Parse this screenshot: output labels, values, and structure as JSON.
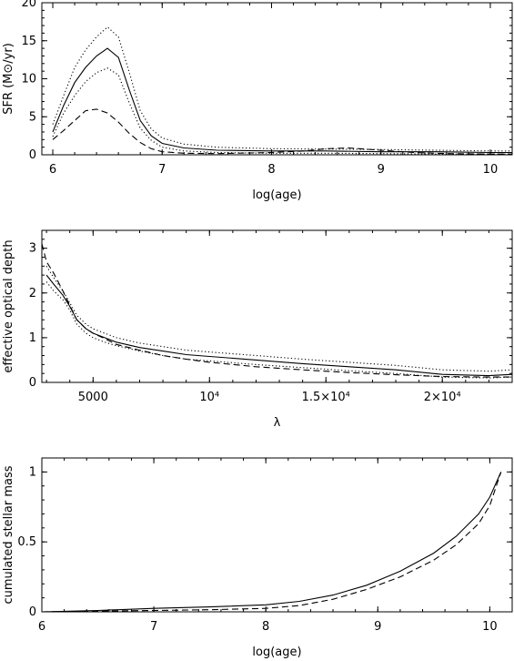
{
  "chart_data": [
    {
      "type": "line",
      "xlabel": "log(age)",
      "ylabel": "SFR (M⊙/yr)",
      "xlim": [
        5.9,
        10.2
      ],
      "ylim": [
        0,
        20
      ],
      "xticks": [
        6,
        7,
        8,
        9,
        10
      ],
      "xtick_labels": [
        "6",
        "7",
        "8",
        "9",
        "10"
      ],
      "yticks": [
        0,
        5,
        10,
        15,
        20
      ],
      "ytick_labels": [
        "0",
        "5",
        "10",
        "15",
        "20"
      ],
      "series": [
        {
          "style": "solid",
          "x": [
            6.0,
            6.1,
            6.2,
            6.3,
            6.4,
            6.5,
            6.6,
            6.7,
            6.8,
            6.9,
            7.0,
            7.2,
            7.5,
            8.0,
            8.5,
            9.0,
            9.5,
            10.0,
            10.2
          ],
          "y": [
            3.0,
            6.5,
            9.5,
            11.5,
            13.0,
            14.0,
            12.8,
            8.5,
            4.5,
            2.5,
            1.5,
            0.9,
            0.6,
            0.5,
            0.5,
            0.4,
            0.4,
            0.3,
            0.3
          ]
        },
        {
          "style": "dotted-upper",
          "x": [
            6.0,
            6.1,
            6.2,
            6.3,
            6.4,
            6.5,
            6.6,
            6.7,
            6.8,
            6.9,
            7.0,
            7.2,
            7.5,
            8.0,
            8.5,
            9.0,
            9.5,
            10.0,
            10.2
          ],
          "y": [
            4.0,
            7.8,
            11.5,
            13.8,
            15.5,
            16.8,
            15.5,
            10.8,
            5.8,
            3.4,
            2.2,
            1.4,
            1.0,
            0.8,
            0.75,
            0.7,
            0.6,
            0.5,
            0.5
          ]
        },
        {
          "style": "dotted-lower",
          "x": [
            6.0,
            6.1,
            6.2,
            6.3,
            6.4,
            6.5,
            6.6,
            6.7,
            6.8,
            6.9,
            7.0,
            7.2,
            7.5,
            8.0,
            8.5,
            9.0,
            9.5,
            10.0,
            10.2
          ],
          "y": [
            2.4,
            5.5,
            7.8,
            9.6,
            10.8,
            11.4,
            10.5,
            6.8,
            3.5,
            1.9,
            1.0,
            0.5,
            0.3,
            0.2,
            0.2,
            0.15,
            0.1,
            0.1,
            0.1
          ]
        },
        {
          "style": "dashed",
          "x": [
            6.0,
            6.1,
            6.2,
            6.3,
            6.4,
            6.5,
            6.6,
            6.7,
            6.8,
            6.9,
            7.0,
            7.2,
            7.5,
            8.0,
            8.3,
            8.5,
            8.7,
            9.0,
            9.3,
            9.6,
            10.0,
            10.2
          ],
          "y": [
            2.0,
            3.2,
            4.5,
            5.8,
            6.0,
            5.5,
            4.3,
            2.8,
            1.6,
            0.8,
            0.4,
            0.2,
            0.15,
            0.3,
            0.5,
            0.8,
            0.9,
            0.6,
            0.3,
            0.15,
            0.1,
            0.1
          ]
        }
      ]
    },
    {
      "type": "line",
      "xlabel": "λ",
      "ylabel": "effective optical depth",
      "xlim": [
        2800,
        23000
      ],
      "ylim": [
        0,
        3.4
      ],
      "xticks": [
        5000,
        10000,
        15000,
        20000
      ],
      "xtick_labels": [
        "5000",
        "10⁴",
        "1.5×10⁴",
        "2×10⁴"
      ],
      "yticks": [
        0,
        1,
        2,
        3
      ],
      "ytick_labels": [
        "0",
        "1",
        "2",
        "3"
      ],
      "series": [
        {
          "style": "solid",
          "x": [
            3000,
            3300,
            3700,
            4000,
            4300,
            4700,
            5000,
            5500,
            6000,
            7000,
            8000,
            9000,
            10000,
            12000,
            14000,
            16000,
            18000,
            20000,
            22000,
            23000
          ],
          "y": [
            2.4,
            2.2,
            1.95,
            1.7,
            1.4,
            1.2,
            1.1,
            1.0,
            0.9,
            0.78,
            0.7,
            0.62,
            0.58,
            0.5,
            0.42,
            0.35,
            0.28,
            0.18,
            0.15,
            0.18
          ]
        },
        {
          "style": "dotted-upper",
          "x": [
            3000,
            3300,
            3700,
            4000,
            4300,
            4700,
            5000,
            5500,
            6000,
            7000,
            8000,
            9000,
            10000,
            12000,
            14000,
            16000,
            18000,
            20000,
            22000,
            23000
          ],
          "y": [
            2.6,
            2.35,
            2.05,
            1.78,
            1.5,
            1.3,
            1.2,
            1.1,
            1.0,
            0.88,
            0.8,
            0.72,
            0.68,
            0.6,
            0.52,
            0.45,
            0.38,
            0.28,
            0.25,
            0.28
          ]
        },
        {
          "style": "dotted-lower",
          "x": [
            3000,
            3300,
            3700,
            4000,
            4300,
            4700,
            5000,
            5500,
            6000,
            7000,
            8000,
            9000,
            10000,
            12000,
            14000,
            16000,
            18000,
            20000,
            22000,
            23000
          ],
          "y": [
            2.25,
            2.05,
            1.85,
            1.62,
            1.3,
            1.1,
            1.0,
            0.9,
            0.82,
            0.7,
            0.6,
            0.52,
            0.48,
            0.4,
            0.33,
            0.26,
            0.2,
            0.12,
            0.1,
            0.12
          ]
        },
        {
          "style": "dashed",
          "x": [
            2800,
            3000,
            3300,
            3700,
            4000,
            4300,
            4700,
            5000,
            5500,
            6000,
            7000,
            8000,
            9000,
            10000,
            12000,
            14000,
            16000,
            18000,
            20000,
            22000,
            23000
          ],
          "y": [
            3.1,
            2.7,
            2.45,
            2.05,
            1.72,
            1.4,
            1.2,
            1.1,
            0.98,
            0.85,
            0.72,
            0.6,
            0.52,
            0.45,
            0.35,
            0.28,
            0.22,
            0.17,
            0.13,
            0.12,
            0.12
          ]
        }
      ]
    },
    {
      "type": "line",
      "xlabel": "log(age)",
      "ylabel": "cumulated stellar mass",
      "xlim": [
        6,
        10.2
      ],
      "ylim": [
        0,
        1.1
      ],
      "xticks": [
        6,
        7,
        8,
        9,
        10
      ],
      "xtick_labels": [
        "6",
        "7",
        "8",
        "9",
        "10"
      ],
      "yticks": [
        0,
        0.5,
        1
      ],
      "ytick_labels": [
        "0",
        "0.5",
        "1"
      ],
      "series": [
        {
          "style": "solid",
          "x": [
            6.0,
            6.5,
            7.0,
            7.5,
            8.0,
            8.3,
            8.6,
            8.9,
            9.2,
            9.5,
            9.7,
            9.9,
            10.0,
            10.1
          ],
          "y": [
            0.0,
            0.01,
            0.025,
            0.035,
            0.05,
            0.075,
            0.12,
            0.19,
            0.29,
            0.42,
            0.54,
            0.7,
            0.82,
            1.0
          ]
        },
        {
          "style": "dashed",
          "x": [
            6.0,
            6.5,
            7.0,
            7.5,
            8.0,
            8.3,
            8.6,
            8.9,
            9.2,
            9.5,
            9.7,
            9.9,
            10.0,
            10.1
          ],
          "y": [
            0.0,
            0.005,
            0.01,
            0.015,
            0.025,
            0.045,
            0.09,
            0.16,
            0.25,
            0.37,
            0.48,
            0.63,
            0.76,
            1.0
          ]
        }
      ]
    }
  ]
}
